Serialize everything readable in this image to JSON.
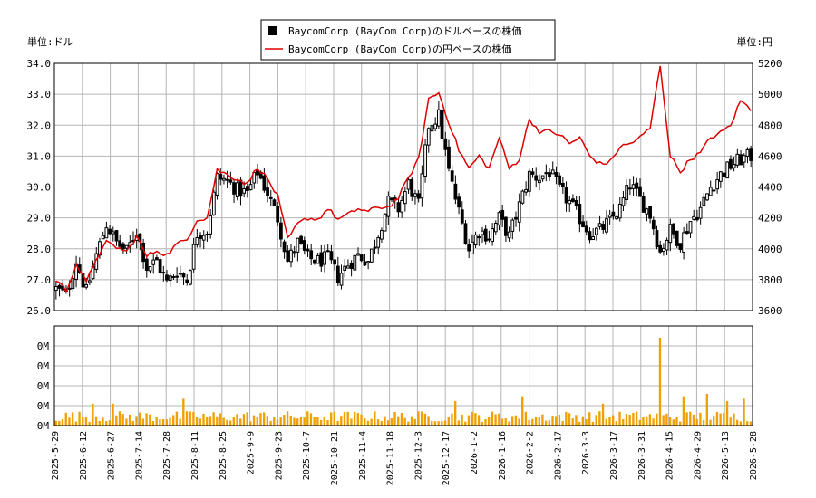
{
  "chart_data": [
    {
      "type": "candlestick+line",
      "left_unit_label": "単位:ドル",
      "right_unit_label": "単位:円",
      "legend": [
        {
          "label": "BaycomCorp (BayCom Corp)のドルベースの株価",
          "color": "#000000",
          "marker": "square"
        },
        {
          "label": "BaycomCorp (BayCom Corp)の円ベースの株価",
          "color": "#dd0000",
          "marker": "line"
        }
      ],
      "legend_position": "top-center",
      "y_left": {
        "min": 26.0,
        "max": 34.0,
        "ticks": [
          "26.0",
          "27.0",
          "28.0",
          "29.0",
          "30.0",
          "31.0",
          "32.0",
          "33.0",
          "34.0"
        ]
      },
      "y_right": {
        "min": 3600,
        "max": 5200,
        "ticks": [
          "3600",
          "3800",
          "4000",
          "4200",
          "4400",
          "4600",
          "4800",
          "5000",
          "5200"
        ]
      },
      "x_ticks": [
        "2025-5-29",
        "2025-6-12",
        "2025-6-27",
        "2025-7-14",
        "2025-7-28",
        "2025-8-11",
        "2025-8-25",
        "2025-9-9",
        "2025-9-23",
        "2025-10-7",
        "2025-10-21",
        "2025-11-4",
        "2025-11-18",
        "2025-12-3",
        "2025-12-17",
        "2026-1-2",
        "2026-1-16",
        "2026-2-2",
        "2026-2-17",
        "2026-3-3",
        "2026-3-17",
        "2026-3-31",
        "2026-4-15",
        "2026-4-29",
        "2026-5-13",
        "2026-5-28"
      ],
      "usd_close_keypoints": [
        [
          0,
          26.7
        ],
        [
          3,
          26.5
        ],
        [
          6,
          27.6
        ],
        [
          9,
          26.6
        ],
        [
          12,
          27.8
        ],
        [
          15,
          28.8
        ],
        [
          18,
          28.2
        ],
        [
          21,
          27.9
        ],
        [
          24,
          28.6
        ],
        [
          27,
          27.4
        ],
        [
          30,
          27.6
        ],
        [
          33,
          26.9
        ],
        [
          36,
          27.3
        ],
        [
          39,
          27.0
        ],
        [
          42,
          28.5
        ],
        [
          45,
          28.6
        ],
        [
          48,
          30.3
        ],
        [
          51,
          30.2
        ],
        [
          54,
          29.9
        ],
        [
          57,
          29.8
        ],
        [
          60,
          30.5
        ],
        [
          63,
          29.8
        ],
        [
          66,
          29.0
        ],
        [
          69,
          27.6
        ],
        [
          72,
          28.2
        ],
        [
          75,
          27.7
        ],
        [
          78,
          27.6
        ],
        [
          81,
          27.7
        ],
        [
          84,
          27.1
        ],
        [
          87,
          27.5
        ],
        [
          90,
          27.8
        ],
        [
          93,
          27.6
        ],
        [
          96,
          28.5
        ],
        [
          99,
          29.5
        ],
        [
          102,
          29.3
        ],
        [
          105,
          30.1
        ],
        [
          108,
          29.4
        ],
        [
          111,
          32.0
        ],
        [
          114,
          32.3
        ],
        [
          117,
          30.5
        ],
        [
          120,
          29.2
        ],
        [
          123,
          28.0
        ],
        [
          126,
          28.6
        ],
        [
          129,
          28.4
        ],
        [
          132,
          29.0
        ],
        [
          135,
          28.4
        ],
        [
          138,
          29.4
        ],
        [
          141,
          30.4
        ],
        [
          144,
          30.3
        ],
        [
          147,
          30.5
        ],
        [
          150,
          29.9
        ],
        [
          153,
          29.5
        ],
        [
          156,
          29.0
        ],
        [
          159,
          28.5
        ],
        [
          162,
          28.6
        ],
        [
          165,
          28.9
        ],
        [
          168,
          29.3
        ],
        [
          171,
          30.1
        ],
        [
          174,
          29.6
        ],
        [
          177,
          29.1
        ],
        [
          180,
          27.9
        ],
        [
          183,
          28.6
        ],
        [
          186,
          28.2
        ],
        [
          189,
          28.9
        ],
        [
          192,
          29.3
        ],
        [
          195,
          30.0
        ],
        [
          198,
          30.4
        ],
        [
          201,
          30.7
        ],
        [
          204,
          30.9
        ],
        [
          207,
          31.0
        ]
      ],
      "usd_candles_count": 208,
      "usd_range": {
        "min": 26.3,
        "max": 33.5
      },
      "jpy_keypoints": [
        [
          0,
          3800
        ],
        [
          3,
          3730
        ],
        [
          6,
          3900
        ],
        [
          9,
          3780
        ],
        [
          12,
          3940
        ],
        [
          15,
          4040
        ],
        [
          18,
          4010
        ],
        [
          21,
          3980
        ],
        [
          24,
          4080
        ],
        [
          27,
          3950
        ],
        [
          30,
          3990
        ],
        [
          33,
          3960
        ],
        [
          36,
          4030
        ],
        [
          39,
          4060
        ],
        [
          42,
          4190
        ],
        [
          45,
          4200
        ],
        [
          48,
          4510
        ],
        [
          51,
          4480
        ],
        [
          54,
          4450
        ],
        [
          57,
          4420
        ],
        [
          60,
          4530
        ],
        [
          63,
          4450
        ],
        [
          66,
          4340
        ],
        [
          69,
          4060
        ],
        [
          72,
          4160
        ],
        [
          75,
          4200
        ],
        [
          78,
          4190
        ],
        [
          81,
          4260
        ],
        [
          84,
          4190
        ],
        [
          87,
          4220
        ],
        [
          90,
          4260
        ],
        [
          93,
          4240
        ],
        [
          96,
          4270
        ],
        [
          99,
          4270
        ],
        [
          102,
          4330
        ],
        [
          105,
          4460
        ],
        [
          108,
          4580
        ],
        [
          111,
          4970
        ],
        [
          114,
          5010
        ],
        [
          117,
          4820
        ],
        [
          120,
          4640
        ],
        [
          123,
          4520
        ],
        [
          126,
          4600
        ],
        [
          129,
          4520
        ],
        [
          132,
          4720
        ],
        [
          135,
          4520
        ],
        [
          138,
          4580
        ],
        [
          141,
          4840
        ],
        [
          144,
          4760
        ],
        [
          147,
          4760
        ],
        [
          150,
          4740
        ],
        [
          153,
          4680
        ],
        [
          156,
          4720
        ],
        [
          159,
          4600
        ],
        [
          162,
          4550
        ],
        [
          165,
          4560
        ],
        [
          168,
          4660
        ],
        [
          171,
          4680
        ],
        [
          174,
          4720
        ],
        [
          177,
          4780
        ],
        [
          180,
          5190
        ],
        [
          183,
          4600
        ],
        [
          186,
          4500
        ],
        [
          189,
          4580
        ],
        [
          192,
          4620
        ],
        [
          195,
          4720
        ],
        [
          198,
          4750
        ],
        [
          201,
          4800
        ],
        [
          204,
          4960
        ],
        [
          207,
          4900
        ]
      ],
      "volume": {
        "y_ticks": [
          "0M",
          "0M",
          "0M",
          "0M",
          "0M"
        ],
        "bars_count": 208,
        "spikes": [
          [
            11,
            9
          ],
          [
            17,
            9
          ],
          [
            38,
            11
          ],
          [
            119,
            10
          ],
          [
            139,
            12
          ],
          [
            163,
            9
          ],
          [
            180,
            36
          ],
          [
            187,
            12
          ],
          [
            194,
            13
          ],
          [
            200,
            10
          ],
          [
            205,
            11
          ]
        ]
      },
      "grid": true,
      "colors": {
        "candle": "#000000",
        "yen_line": "#dd0000",
        "volume": "#f0a000",
        "grid": "#b4b4b4"
      }
    }
  ]
}
